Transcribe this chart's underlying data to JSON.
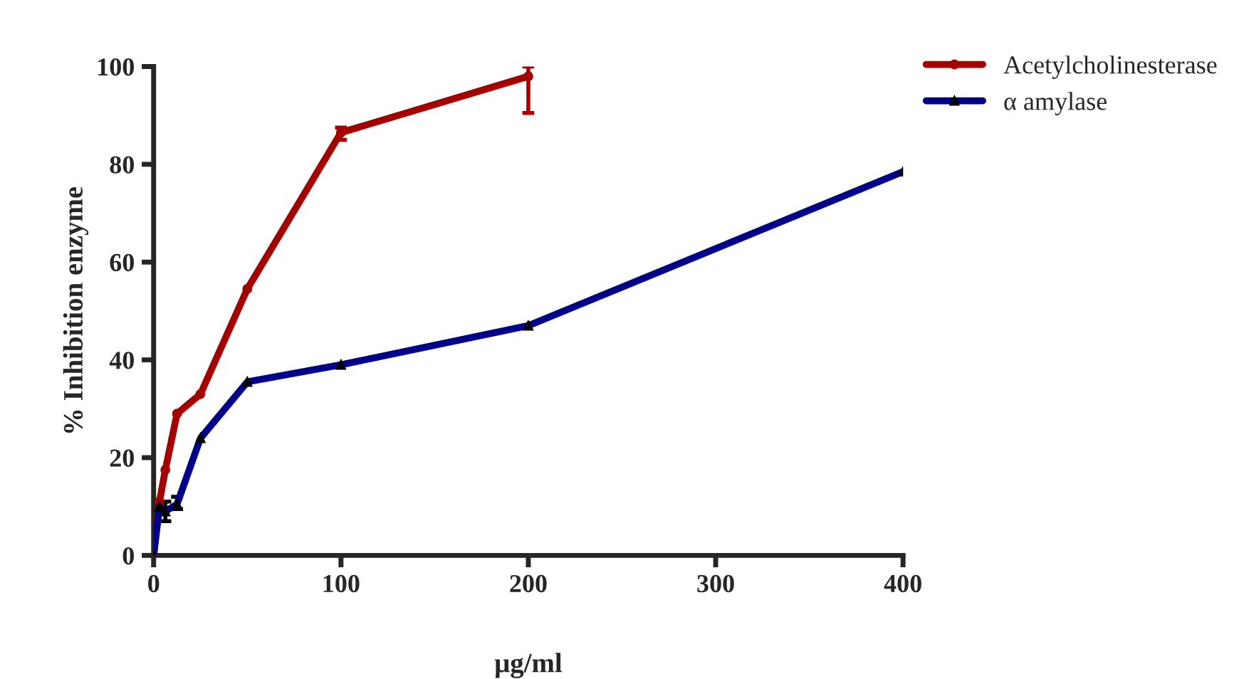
{
  "chart_data": {
    "type": "line",
    "xlabel": "μg/ml",
    "ylabel": "% Inhibition enzyme",
    "x": [
      0,
      3.125,
      6.25,
      12.5,
      25,
      50,
      100,
      200
    ],
    "series": [
      {
        "name": "Acetylcholinesterase",
        "color": "#a50000",
        "marker": "circle",
        "values": [
          0,
          11,
          17.5,
          29,
          33,
          54.5,
          86.5,
          98
        ],
        "errors": [
          null,
          null,
          null,
          null,
          null,
          null,
          [
            85,
            87.5
          ],
          [
            90.5,
            100
          ]
        ]
      },
      {
        "name": "α amylase",
        "color": "#00008b",
        "marker": "triangle",
        "x": [
          0,
          3.125,
          6.25,
          12.5,
          25,
          50,
          100,
          200,
          400
        ],
        "values": [
          0,
          10,
          9,
          10.5,
          24,
          35.5,
          39,
          47,
          78.5
        ],
        "errors": [
          null,
          null,
          [
            7,
            11
          ],
          [
            9.5,
            12
          ],
          null,
          null,
          null,
          null,
          null
        ]
      }
    ],
    "xlim": [
      0,
      400
    ],
    "xticks": [
      0,
      100,
      200,
      300,
      400
    ],
    "ylim": [
      0,
      100
    ],
    "yticks": [
      0,
      20,
      40,
      60,
      80,
      100
    ],
    "grid": false,
    "legend": "top right",
    "line_style": "solid"
  }
}
